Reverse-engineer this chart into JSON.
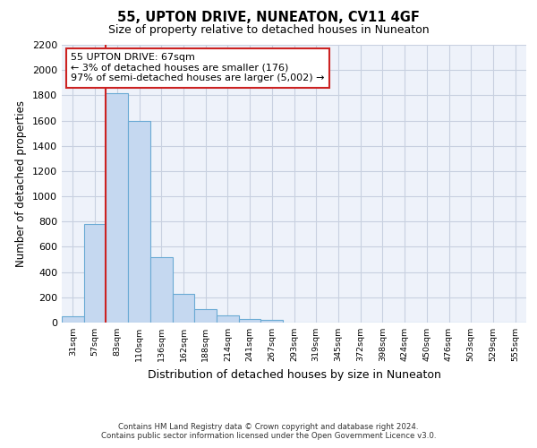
{
  "title1": "55, UPTON DRIVE, NUNEATON, CV11 4GF",
  "title2": "Size of property relative to detached houses in Nuneaton",
  "xlabel": "Distribution of detached houses by size in Nuneaton",
  "ylabel": "Number of detached properties",
  "bar_labels": [
    "31sqm",
    "57sqm",
    "83sqm",
    "110sqm",
    "136sqm",
    "162sqm",
    "188sqm",
    "214sqm",
    "241sqm",
    "267sqm",
    "293sqm",
    "319sqm",
    "345sqm",
    "372sqm",
    "398sqm",
    "424sqm",
    "450sqm",
    "476sqm",
    "503sqm",
    "529sqm",
    "555sqm"
  ],
  "bar_heights": [
    50,
    780,
    1820,
    1600,
    520,
    230,
    105,
    55,
    30,
    20,
    0,
    0,
    0,
    0,
    0,
    0,
    0,
    0,
    0,
    0,
    0
  ],
  "bar_color": "#c5d8f0",
  "bar_edge_color": "#6aaad4",
  "ylim": [
    0,
    2200
  ],
  "yticks": [
    0,
    200,
    400,
    600,
    800,
    1000,
    1200,
    1400,
    1600,
    1800,
    2000,
    2200
  ],
  "vline_x_index": 1.5,
  "property_line_label": "55 UPTON DRIVE: 67sqm",
  "annotation_line1": "← 3% of detached houses are smaller (176)",
  "annotation_line2": "97% of semi-detached houses are larger (5,002) →",
  "vline_color": "#cc2222",
  "grid_color": "#c8d0e0",
  "background_color": "#eef2fa",
  "footer1": "Contains HM Land Registry data © Crown copyright and database right 2024.",
  "footer2": "Contains public sector information licensed under the Open Government Licence v3.0."
}
